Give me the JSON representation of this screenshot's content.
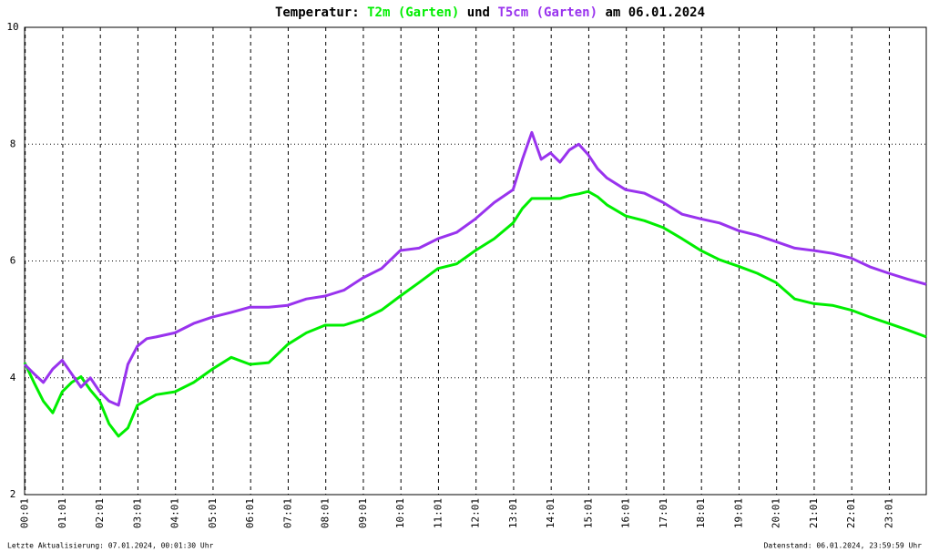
{
  "chart_data": {
    "type": "line",
    "title_parts": [
      "Temperatur:",
      "und",
      "am 06.01.2024"
    ],
    "footer_left": "Letzte Aktualisierung: 07.01.2024, 00:01:30 Uhr",
    "footer_right": "Datenstand: 06.01.2024, 23:59:59 Uhr",
    "x": [
      0,
      15,
      30,
      45,
      60,
      75,
      90,
      105,
      120,
      135,
      150,
      165,
      180,
      195,
      210,
      240,
      270,
      300,
      330,
      360,
      390,
      420,
      450,
      480,
      510,
      540,
      570,
      600,
      630,
      660,
      690,
      720,
      750,
      780,
      795,
      810,
      825,
      840,
      855,
      870,
      885,
      900,
      915,
      930,
      960,
      990,
      1020,
      1050,
      1080,
      1110,
      1140,
      1170,
      1200,
      1230,
      1260,
      1290,
      1320,
      1350,
      1380,
      1410,
      1440
    ],
    "series": [
      {
        "name": "T2m (Garten)",
        "color": "#00ee00",
        "values": [
          4.26,
          3.92,
          3.6,
          3.4,
          3.76,
          3.92,
          4.02,
          3.79,
          3.6,
          3.21,
          3.0,
          3.14,
          3.53,
          3.62,
          3.71,
          3.76,
          3.92,
          4.15,
          4.35,
          4.23,
          4.26,
          4.57,
          4.77,
          4.9,
          4.9,
          5.0,
          5.16,
          5.4,
          5.63,
          5.87,
          5.95,
          6.18,
          6.38,
          6.65,
          6.9,
          7.07,
          7.07,
          7.07,
          7.07,
          7.12,
          7.15,
          7.19,
          7.1,
          6.96,
          6.77,
          6.69,
          6.57,
          6.38,
          6.18,
          6.02,
          5.91,
          5.79,
          5.63,
          5.35,
          5.27,
          5.24,
          5.16,
          5.04,
          4.93,
          4.82,
          4.7
        ]
      },
      {
        "name": "T5cm (Garten)",
        "color": "#9933ee",
        "values": [
          4.23,
          4.07,
          3.92,
          4.15,
          4.3,
          4.07,
          3.84,
          4.0,
          3.76,
          3.6,
          3.53,
          4.23,
          4.54,
          4.67,
          4.7,
          4.77,
          4.93,
          5.04,
          5.12,
          5.21,
          5.21,
          5.24,
          5.35,
          5.4,
          5.5,
          5.71,
          5.87,
          6.18,
          6.22,
          6.38,
          6.49,
          6.72,
          7.0,
          7.22,
          7.74,
          8.2,
          7.74,
          7.85,
          7.69,
          7.9,
          8.0,
          7.82,
          7.58,
          7.42,
          7.22,
          7.16,
          7.0,
          6.8,
          6.72,
          6.65,
          6.52,
          6.44,
          6.33,
          6.22,
          6.18,
          6.13,
          6.05,
          5.9,
          5.79,
          5.69,
          5.6
        ]
      }
    ],
    "xlim": [
      0,
      1440
    ],
    "xticks": [
      {
        "value": 1,
        "label": "00:01"
      },
      {
        "value": 61,
        "label": "01:01"
      },
      {
        "value": 121,
        "label": "02:01"
      },
      {
        "value": 181,
        "label": "03:01"
      },
      {
        "value": 241,
        "label": "04:01"
      },
      {
        "value": 301,
        "label": "05:01"
      },
      {
        "value": 361,
        "label": "06:01"
      },
      {
        "value": 421,
        "label": "07:01"
      },
      {
        "value": 481,
        "label": "08:01"
      },
      {
        "value": 541,
        "label": "09:01"
      },
      {
        "value": 601,
        "label": "10:01"
      },
      {
        "value": 661,
        "label": "11:01"
      },
      {
        "value": 721,
        "label": "12:01"
      },
      {
        "value": 781,
        "label": "13:01"
      },
      {
        "value": 841,
        "label": "14:01"
      },
      {
        "value": 901,
        "label": "15:01"
      },
      {
        "value": 961,
        "label": "16:01"
      },
      {
        "value": 1021,
        "label": "17:01"
      },
      {
        "value": 1081,
        "label": "18:01"
      },
      {
        "value": 1141,
        "label": "19:01"
      },
      {
        "value": 1201,
        "label": "20:01"
      },
      {
        "value": 1261,
        "label": "21:01"
      },
      {
        "value": 1321,
        "label": "22:01"
      },
      {
        "value": 1381,
        "label": "23:01"
      }
    ],
    "ylim": [
      2,
      10
    ],
    "yticks": [
      2,
      4,
      6,
      8,
      10
    ],
    "grid": true
  }
}
